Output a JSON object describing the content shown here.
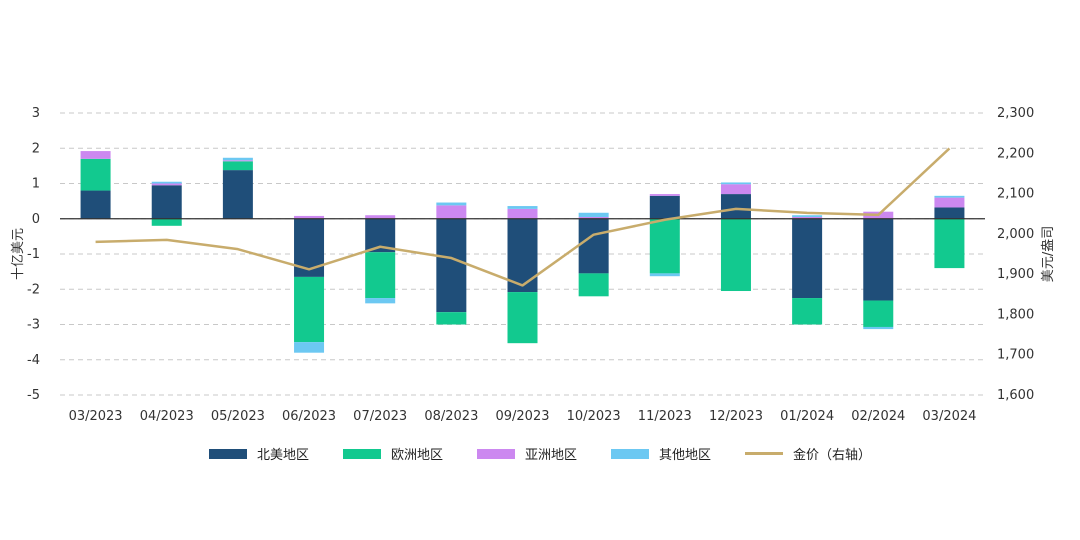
{
  "chart_data": {
    "type": "bar",
    "title": "",
    "xlabel": "",
    "ylabel": "十亿美元",
    "y2label": "美元/盎司",
    "ylim": [
      -5,
      3
    ],
    "yticks": [
      -5,
      -4,
      -3,
      -2,
      -1,
      0,
      1,
      2,
      3
    ],
    "y2lim": [
      1600,
      2300
    ],
    "y2ticks": [
      "1,600",
      "1,700",
      "1,800",
      "1,900",
      "2,000",
      "2,100",
      "2,200",
      "2,300"
    ],
    "y2tick_values": [
      1600,
      1700,
      1800,
      1900,
      2000,
      2100,
      2200,
      2300
    ],
    "grid": true,
    "legend_position": "bottom",
    "stacked": true,
    "categories": [
      "03/2023",
      "04/2023",
      "05/2023",
      "06/2023",
      "07/2023",
      "08/2023",
      "09/2023",
      "10/2023",
      "11/2023",
      "12/2023",
      "01/2024",
      "02/2024",
      "03/2024"
    ],
    "series": [
      {
        "name": "北美地区",
        "color": "#1f4e79",
        "values": [
          0.8,
          0.95,
          1.38,
          -1.65,
          -0.95,
          -2.65,
          -2.08,
          -1.55,
          0.65,
          0.7,
          -2.25,
          -2.32,
          0.32
        ]
      },
      {
        "name": "欧洲地区",
        "color": "#12c98f",
        "values": [
          0.9,
          -0.2,
          0.25,
          -1.85,
          -1.3,
          -0.35,
          -1.45,
          -0.65,
          -1.55,
          -2.05,
          -0.75,
          -0.75,
          -1.4
        ]
      },
      {
        "name": "亚洲地区",
        "color": "#cc88f0",
        "values": [
          0.22,
          0.05,
          0.03,
          0.08,
          0.1,
          0.38,
          0.28,
          0.05,
          0.05,
          0.28,
          0.05,
          0.2,
          0.28
        ]
      },
      {
        "name": "其他地区",
        "color": "#6cc8f2",
        "values": [
          0.0,
          0.05,
          0.07,
          -0.3,
          -0.15,
          0.08,
          0.08,
          0.12,
          -0.08,
          0.05,
          0.05,
          -0.06,
          0.05
        ]
      }
    ],
    "line": {
      "name": "金价（右轴）",
      "color": "#c8ac6c",
      "axis": "right",
      "values": [
        1980,
        1985,
        1962,
        1912,
        1968,
        1940,
        1872,
        1998,
        2035,
        2062,
        2052,
        2047,
        2212
      ]
    }
  }
}
